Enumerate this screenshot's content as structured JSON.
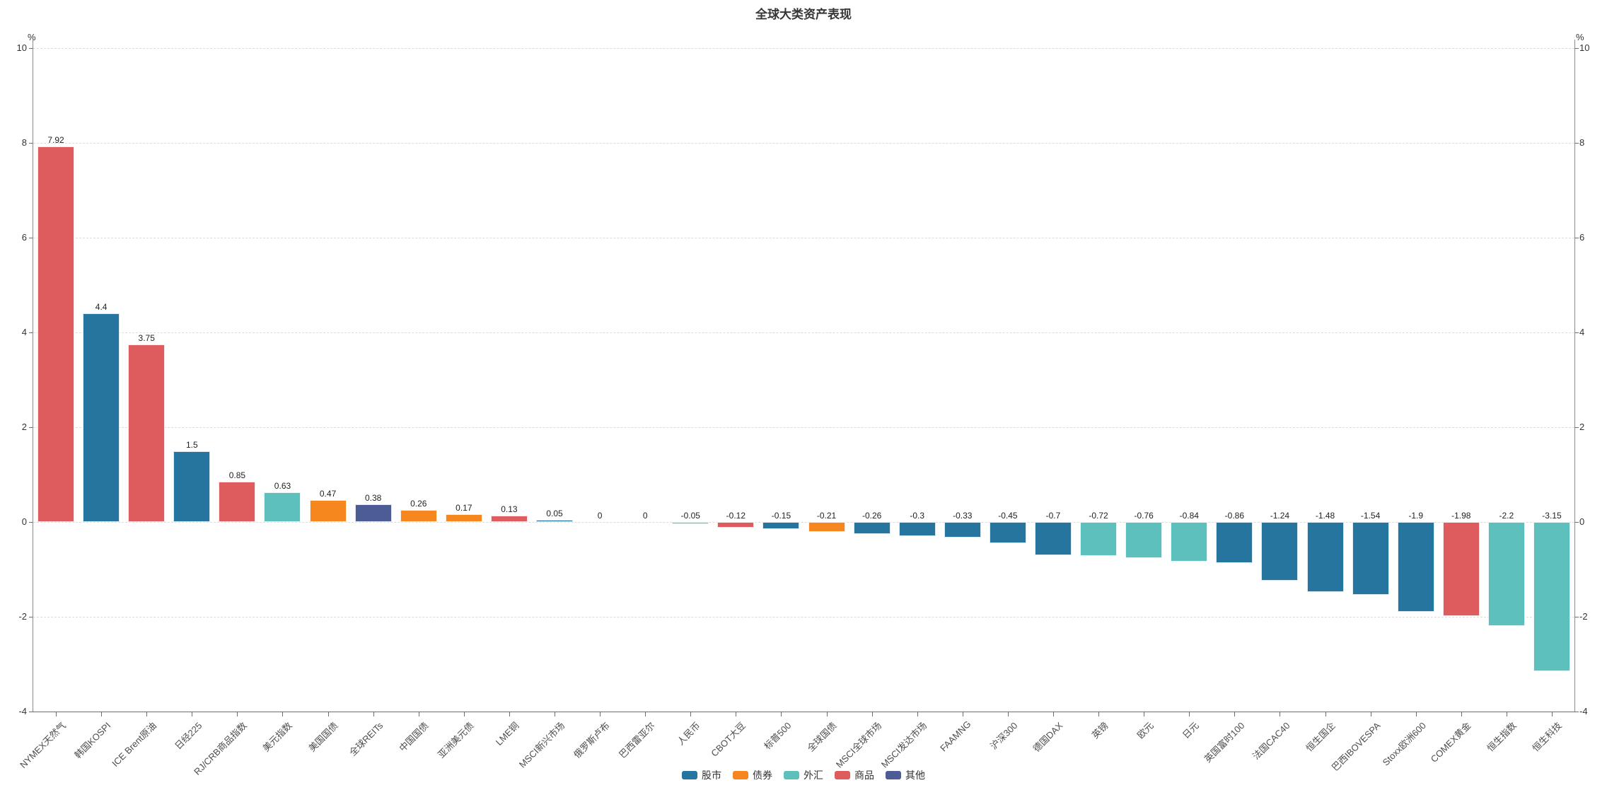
{
  "title": "全球大类资产表现",
  "axis": {
    "unit_label": "%",
    "y_ticks": [
      10,
      8,
      6,
      4,
      2,
      0,
      -2,
      -4
    ]
  },
  "legend": [
    {
      "label": "股市",
      "color": "#26759E"
    },
    {
      "label": "债券",
      "color": "#F5871E"
    },
    {
      "label": "外汇",
      "color": "#5EC0BC"
    },
    {
      "label": "商品",
      "color": "#DE5C5E"
    },
    {
      "label": "其他",
      "color": "#4D5C95"
    }
  ],
  "chart_data": {
    "type": "bar",
    "title": "全球大类资产表现",
    "xlabel": "",
    "ylabel": "%",
    "ylim": [
      -4,
      10
    ],
    "y_ticks": [
      10,
      8,
      6,
      4,
      2,
      0,
      -2,
      -4
    ],
    "grid": true,
    "legend_position": "bottom",
    "categories": [
      "NYMEX天然气",
      "韩国KOSPI",
      "ICE Brent原油",
      "日经225",
      "RJ/CRB商品指数",
      "美元指数",
      "美国国债",
      "全球REITs",
      "中国国债",
      "亚洲美元债",
      "LME铜",
      "MSCI新兴市场",
      "俄罗斯卢布",
      "巴西雷亚尔",
      "人民币",
      "CBOT大豆",
      "标普500",
      "全球国债",
      "MSCI全球市场",
      "MSCI发达市场",
      "FAAMNG",
      "沪深300",
      "德国DAX",
      "英镑",
      "欧元",
      "日元",
      "英国富时100",
      "法国CAC40",
      "恒生国企",
      "巴西IBOVESPA",
      "Stoxx欧洲600",
      "COMEX黄金",
      "恒生指数",
      "恒生科技"
    ],
    "values": [
      7.92,
      4.4,
      3.75,
      1.5,
      0.85,
      0.63,
      0.47,
      0.38,
      0.26,
      0.17,
      0.13,
      0.05,
      0,
      0,
      -0.05,
      -0.12,
      -0.15,
      -0.21,
      -0.26,
      -0.3,
      -0.33,
      -0.45,
      -0.7,
      -0.72,
      -0.76,
      -0.84,
      -0.86,
      -1.24,
      -1.48,
      -1.54,
      -1.9,
      -1.98,
      -2.2,
      -3.15
    ],
    "groups": [
      "商品",
      "股市",
      "商品",
      "股市",
      "商品",
      "外汇",
      "债券",
      "其他",
      "债券",
      "债券",
      "商品",
      "股市",
      "外汇",
      "外汇",
      "外汇",
      "商品",
      "股市",
      "债券",
      "股市",
      "股市",
      "股市",
      "股市",
      "股市",
      "外汇",
      "外汇",
      "外汇",
      "股市",
      "股市",
      "股市",
      "股市",
      "股市",
      "商品",
      "外汇",
      "外汇"
    ]
  }
}
